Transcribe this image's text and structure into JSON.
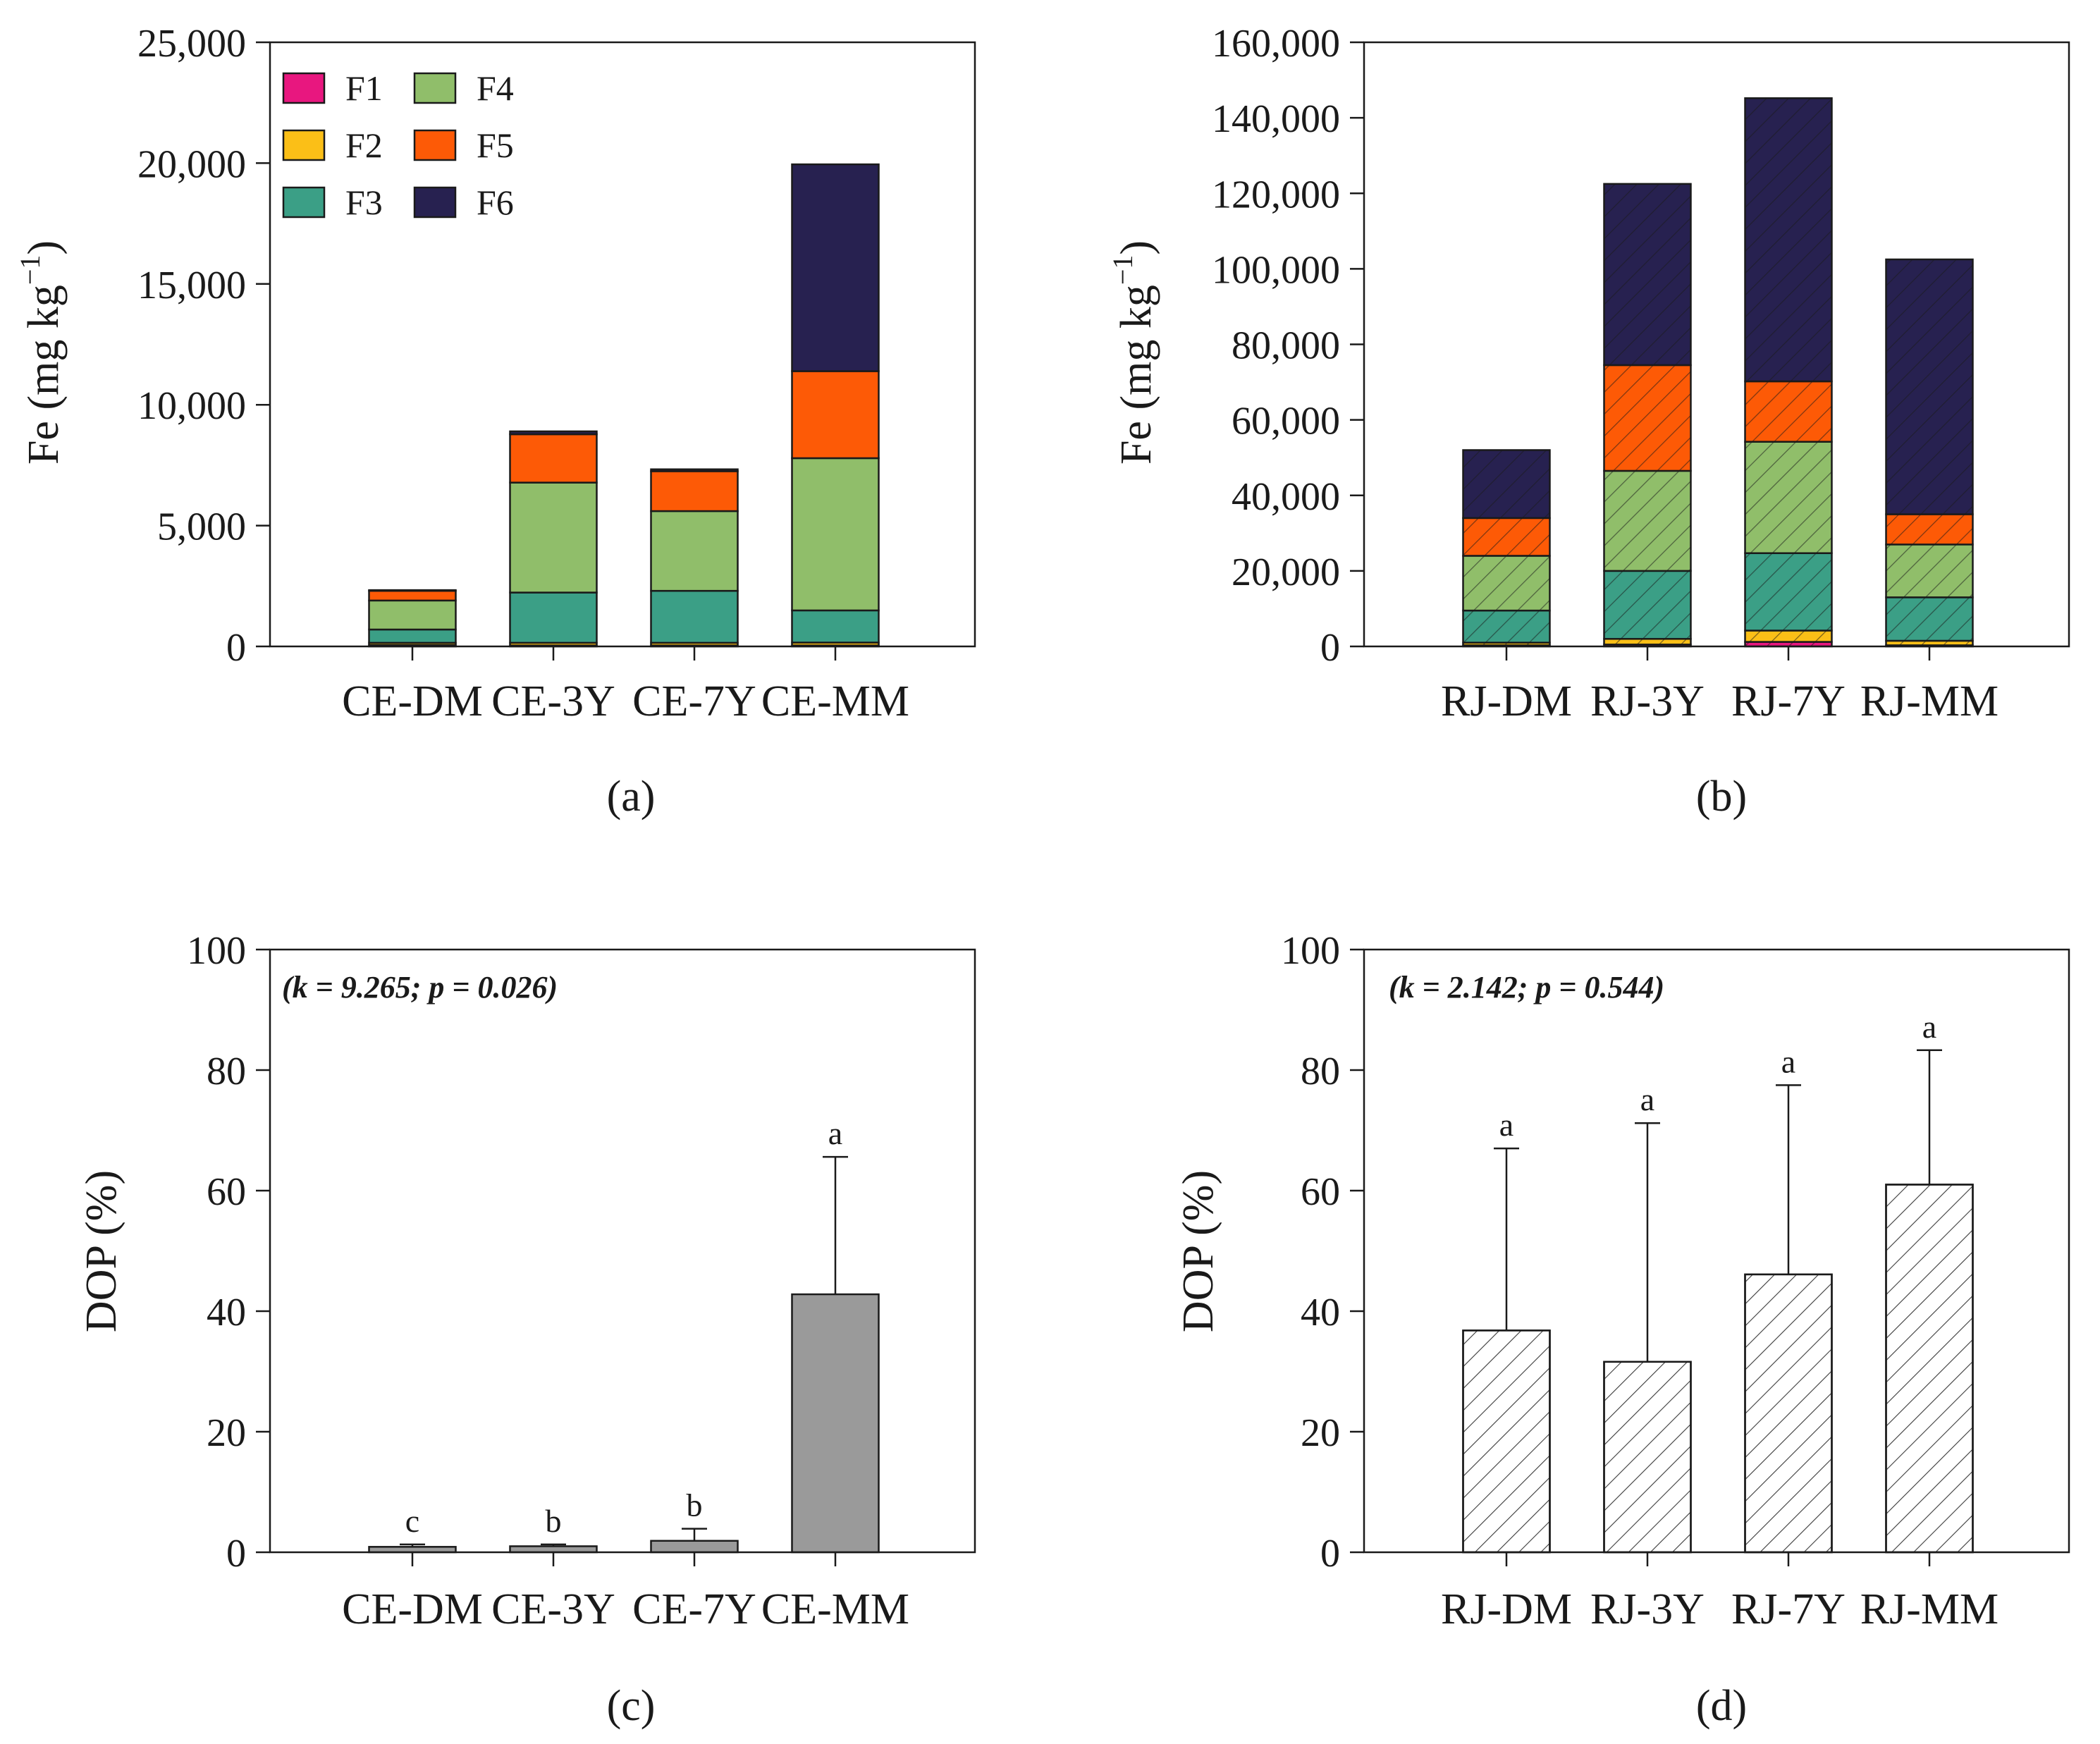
{
  "colors": {
    "F1": "#e8177f",
    "F2": "#fbbf17",
    "F3": "#3b9f86",
    "F4": "#90be6a",
    "F5": "#fd5a06",
    "F6": "#272150",
    "gray": "#9a9a9a",
    "white": "#ffffff"
  },
  "legend": [
    "F1",
    "F2",
    "F3",
    "F4",
    "F5",
    "F6"
  ],
  "chart_data": [
    {
      "id": "a",
      "type": "bar",
      "stacked": true,
      "panel_label": "(a)",
      "ylabel": "Fe (mg kg",
      "ylabel_sup": "−1",
      "ylabel_close": ")",
      "ylim": [
        0,
        25000
      ],
      "yticks": [
        0,
        5000,
        10000,
        15000,
        20000,
        25000
      ],
      "ytick_labels": [
        "0",
        "5,000",
        "10,000",
        "15,000",
        "20,000",
        "25,000"
      ],
      "categories": [
        "CE-DM",
        "CE-3Y",
        "CE-7Y",
        "CE-MM"
      ],
      "hatch": false,
      "legend_shown": true,
      "series": [
        {
          "name": "F1",
          "values": [
            60,
            40,
            40,
            40
          ]
        },
        {
          "name": "F2",
          "values": [
            90,
            110,
            110,
            120
          ]
        },
        {
          "name": "F3",
          "values": [
            550,
            2080,
            2150,
            1330
          ]
        },
        {
          "name": "F4",
          "values": [
            1200,
            4550,
            3300,
            6300
          ]
        },
        {
          "name": "F5",
          "values": [
            400,
            2000,
            1650,
            3600
          ]
        },
        {
          "name": "F6",
          "values": [
            30,
            120,
            80,
            8560
          ]
        }
      ]
    },
    {
      "id": "b",
      "type": "bar",
      "stacked": true,
      "panel_label": "(b)",
      "ylabel": "Fe (mg kg",
      "ylabel_sup": "−1",
      "ylabel_close": ")",
      "ylim": [
        0,
        160000
      ],
      "yticks": [
        0,
        20000,
        40000,
        60000,
        80000,
        100000,
        120000,
        140000,
        160000
      ],
      "ytick_labels": [
        "0",
        "20,000",
        "40,000",
        "60,000",
        "80,000",
        "100,000",
        "120,000",
        "140,000",
        "160,000"
      ],
      "categories": [
        "RJ-DM",
        "RJ-3Y",
        "RJ-7Y",
        "RJ-MM"
      ],
      "hatch": true,
      "legend_shown": false,
      "series": [
        {
          "name": "F1",
          "values": [
            300,
            500,
            1200,
            300
          ]
        },
        {
          "name": "F2",
          "values": [
            700,
            1500,
            3000,
            1200
          ]
        },
        {
          "name": "F3",
          "values": [
            8500,
            18000,
            20500,
            11500
          ]
        },
        {
          "name": "F4",
          "values": [
            14500,
            26500,
            29500,
            14000
          ]
        },
        {
          "name": "F5",
          "values": [
            10000,
            28000,
            16000,
            8000
          ]
        },
        {
          "name": "F6",
          "values": [
            18000,
            48000,
            75000,
            67500
          ]
        }
      ]
    },
    {
      "id": "c",
      "type": "bar",
      "panel_label": "(c)",
      "ylabel": "DOP (%)",
      "ylim": [
        0,
        100
      ],
      "yticks": [
        0,
        20,
        40,
        60,
        80,
        100
      ],
      "ytick_labels": [
        "0",
        "20",
        "40",
        "60",
        "80",
        "100"
      ],
      "categories": [
        "CE-DM",
        "CE-3Y",
        "CE-7Y",
        "CE-MM"
      ],
      "values": [
        0.9,
        1.0,
        1.9,
        42.8
      ],
      "error": [
        0.4,
        0.3,
        2.0,
        22.8
      ],
      "letters": [
        "c",
        "b",
        "b",
        "a"
      ],
      "stat": "(k = 9.265; p = 0.026)",
      "hatch": false
    },
    {
      "id": "d",
      "type": "bar",
      "panel_label": "(d)",
      "ylabel": "DOP (%)",
      "ylim": [
        0,
        100
      ],
      "yticks": [
        0,
        20,
        40,
        60,
        80,
        100
      ],
      "ytick_labels": [
        "0",
        "20",
        "40",
        "60",
        "80",
        "100"
      ],
      "categories": [
        "RJ-DM",
        "RJ-3Y",
        "RJ-7Y",
        "RJ-MM"
      ],
      "values": [
        36.8,
        31.6,
        46.1,
        61.0
      ],
      "error": [
        30.2,
        39.6,
        31.4,
        22.3
      ],
      "letters": [
        "a",
        "a",
        "a",
        "a"
      ],
      "stat": "(k = 2.142; p = 0.544)",
      "hatch": true
    }
  ]
}
